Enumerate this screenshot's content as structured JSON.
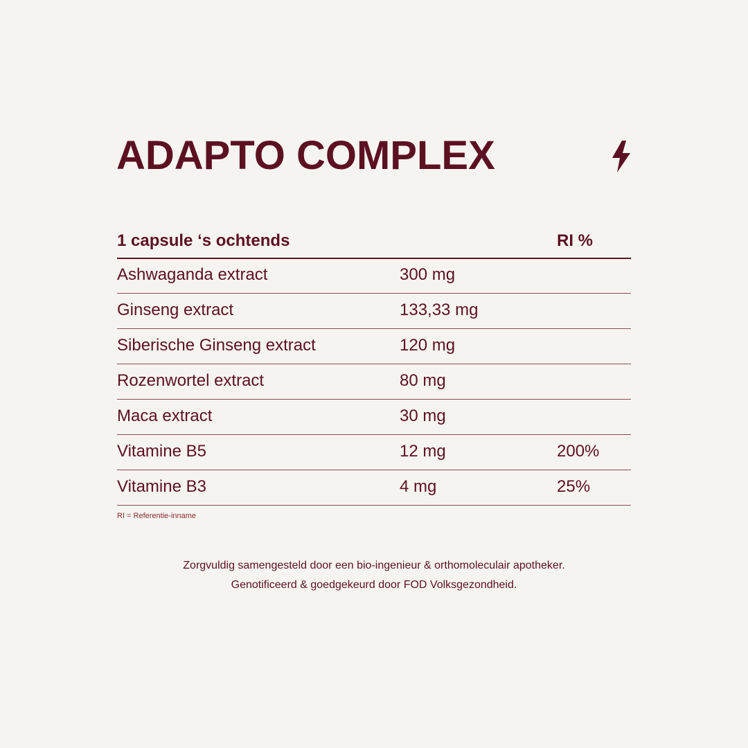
{
  "title": "ADAPTO COMPLEX",
  "icon": "lightning-bolt-icon",
  "colors": {
    "background": "#f5f4f0",
    "text": "#5c1122",
    "footnote": "#8a2a30"
  },
  "table": {
    "header": {
      "label": "1 capsule ‘s ochtends",
      "ri": "RI %"
    },
    "rows": [
      {
        "name": "Ashwaganda extract",
        "amount": "300 mg",
        "ri": ""
      },
      {
        "name": "Ginseng extract",
        "amount": "133,33 mg",
        "ri": ""
      },
      {
        "name": "Siberische Ginseng extract",
        "amount": "120 mg",
        "ri": ""
      },
      {
        "name": "Rozenwortel extract",
        "amount": "80 mg",
        "ri": ""
      },
      {
        "name": "Maca extract",
        "amount": "30 mg",
        "ri": ""
      },
      {
        "name": "Vitamine B5",
        "amount": "12 mg",
        "ri": "200%"
      },
      {
        "name": "Vitamine B3",
        "amount": "4 mg",
        "ri": "25%"
      }
    ]
  },
  "footnote": "RI = Referentie-inname",
  "notes": [
    "Zorgvuldig samengesteld door een bio-ingenieur & orthomoleculair apotheker.",
    "Genotificeerd & goedgekeurd door FOD Volksgezondheid."
  ]
}
